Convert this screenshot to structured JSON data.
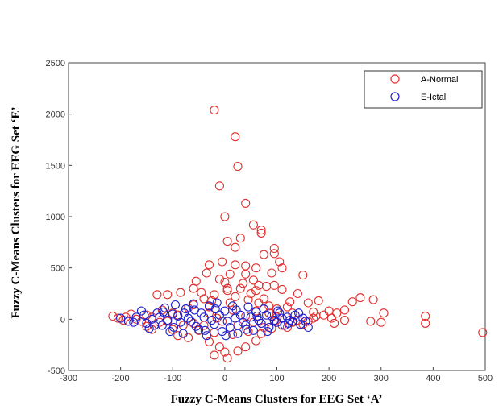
{
  "chart_data": {
    "type": "scatter",
    "xlabel": "Fuzzy C-Means Clusters for EEG Set ‘A’",
    "ylabel": "Fuzzy C-Means Clusters for EEG Set ‘E’",
    "xlim": [
      -300,
      500
    ],
    "ylim": [
      -500,
      2500
    ],
    "xticks": [
      "-300",
      "-200",
      "-100",
      "0",
      "100",
      "200",
      "300",
      "400",
      "500"
    ],
    "yticks": [
      "-500",
      "0",
      "500",
      "1000",
      "1500",
      "2000",
      "2500"
    ],
    "grid": false,
    "legend_position": "top-right",
    "marker": "open-circle",
    "series": [
      {
        "name": "A-Normal",
        "color": "#e03030",
        "points": [
          [
            -20,
            2040
          ],
          [
            20,
            1780
          ],
          [
            25,
            1490
          ],
          [
            -10,
            1300
          ],
          [
            40,
            1130
          ],
          [
            0,
            1000
          ],
          [
            55,
            920
          ],
          [
            70,
            870
          ],
          [
            70,
            840
          ],
          [
            5,
            760
          ],
          [
            30,
            790
          ],
          [
            20,
            700
          ],
          [
            95,
            690
          ],
          [
            95,
            640
          ],
          [
            105,
            560
          ],
          [
            75,
            630
          ],
          [
            -30,
            530
          ],
          [
            -5,
            560
          ],
          [
            20,
            530
          ],
          [
            40,
            520
          ],
          [
            60,
            500
          ],
          [
            40,
            440
          ],
          [
            90,
            450
          ],
          [
            110,
            500
          ],
          [
            150,
            430
          ],
          [
            -35,
            450
          ],
          [
            -10,
            390
          ],
          [
            10,
            440
          ],
          [
            55,
            380
          ],
          [
            80,
            320
          ],
          [
            95,
            330
          ],
          [
            110,
            290
          ],
          [
            60,
            280
          ],
          [
            5,
            300
          ],
          [
            30,
            300
          ],
          [
            -60,
            300
          ],
          [
            -85,
            260
          ],
          [
            -130,
            240
          ],
          [
            -110,
            240
          ],
          [
            140,
            250
          ],
          [
            160,
            160
          ],
          [
            180,
            180
          ],
          [
            200,
            80
          ],
          [
            230,
            90
          ],
          [
            245,
            170
          ],
          [
            260,
            210
          ],
          [
            285,
            190
          ],
          [
            305,
            60
          ],
          [
            280,
            -20
          ],
          [
            300,
            -30
          ],
          [
            385,
            30
          ],
          [
            385,
            -40
          ],
          [
            495,
            -130
          ],
          [
            210,
            -40
          ],
          [
            230,
            -10
          ],
          [
            -215,
            30
          ],
          [
            -205,
            10
          ],
          [
            -190,
            20
          ],
          [
            -180,
            50
          ],
          [
            -160,
            -20
          ],
          [
            -150,
            -70
          ],
          [
            -140,
            -100
          ],
          [
            -90,
            -160
          ],
          [
            -70,
            -180
          ],
          [
            -30,
            -220
          ],
          [
            -10,
            -270
          ],
          [
            0,
            -320
          ],
          [
            5,
            -380
          ],
          [
            -20,
            -350
          ],
          [
            25,
            -310
          ],
          [
            40,
            -270
          ],
          [
            60,
            -210
          ],
          [
            70,
            -140
          ],
          [
            90,
            -90
          ],
          [
            110,
            -60
          ],
          [
            130,
            -30
          ],
          [
            150,
            -50
          ],
          [
            170,
            10
          ],
          [
            190,
            40
          ],
          [
            120,
            120
          ],
          [
            130,
            60
          ],
          [
            -120,
            90
          ],
          [
            -100,
            60
          ],
          [
            -60,
            140
          ],
          [
            -40,
            200
          ],
          [
            -20,
            240
          ],
          [
            20,
            220
          ],
          [
            45,
            190
          ],
          [
            65,
            160
          ],
          [
            85,
            130
          ],
          [
            100,
            100
          ],
          [
            -80,
            -60
          ],
          [
            -50,
            -110
          ],
          [
            -20,
            -130
          ],
          [
            15,
            -150
          ],
          [
            45,
            -120
          ],
          [
            75,
            -80
          ],
          [
            -140,
            20
          ],
          [
            -125,
            -30
          ],
          [
            140,
            -10
          ],
          [
            160,
            -20
          ],
          [
            175,
            30
          ],
          [
            -170,
            0
          ],
          [
            -195,
            -10
          ],
          [
            -45,
            260
          ],
          [
            5,
            280
          ],
          [
            35,
            350
          ],
          [
            50,
            250
          ],
          [
            -25,
            180
          ],
          [
            10,
            160
          ],
          [
            60,
            80
          ],
          [
            -90,
            40
          ],
          [
            100,
            20
          ],
          [
            -110,
            -20
          ],
          [
            120,
            -80
          ],
          [
            -60,
            -40
          ],
          [
            25,
            -60
          ],
          [
            -30,
            60
          ],
          [
            40,
            30
          ],
          [
            -5,
            -20
          ],
          [
            75,
            200
          ],
          [
            -70,
            110
          ],
          [
            85,
            60
          ],
          [
            15,
            90
          ],
          [
            -15,
            10
          ],
          [
            55,
            -30
          ],
          [
            -40,
            -60
          ],
          [
            95,
            -20
          ],
          [
            -100,
            -100
          ],
          [
            -150,
            40
          ],
          [
            205,
            10
          ],
          [
            215,
            60
          ],
          [
            170,
            70
          ],
          [
            125,
            170
          ],
          [
            65,
            330
          ],
          [
            0,
            360
          ],
          [
            -55,
            370
          ],
          [
            -30,
            120
          ]
        ]
      },
      {
        "name": "E-Ictal",
        "color": "#2020cc",
        "points": [
          [
            -200,
            10
          ],
          [
            -185,
            -20
          ],
          [
            -170,
            20
          ],
          [
            -160,
            80
          ],
          [
            -150,
            -40
          ],
          [
            -145,
            -90
          ],
          [
            -130,
            60
          ],
          [
            -120,
            -60
          ],
          [
            -115,
            110
          ],
          [
            -105,
            -120
          ],
          [
            -95,
            140
          ],
          [
            -90,
            30
          ],
          [
            -80,
            -140
          ],
          [
            -75,
            100
          ],
          [
            -65,
            -20
          ],
          [
            -60,
            150
          ],
          [
            -50,
            -100
          ],
          [
            -45,
            60
          ],
          [
            -35,
            -160
          ],
          [
            -30,
            130
          ],
          [
            -20,
            -50
          ],
          [
            -15,
            160
          ],
          [
            -5,
            -120
          ],
          [
            0,
            80
          ],
          [
            10,
            -80
          ],
          [
            15,
            130
          ],
          [
            25,
            -140
          ],
          [
            30,
            40
          ],
          [
            40,
            -60
          ],
          [
            45,
            120
          ],
          [
            55,
            -110
          ],
          [
            60,
            70
          ],
          [
            70,
            -40
          ],
          [
            75,
            100
          ],
          [
            85,
            -80
          ],
          [
            90,
            30
          ],
          [
            100,
            -30
          ],
          [
            105,
            60
          ],
          [
            115,
            -60
          ],
          [
            120,
            20
          ],
          [
            130,
            -20
          ],
          [
            135,
            40
          ],
          [
            145,
            -50
          ],
          [
            150,
            10
          ],
          [
            160,
            -80
          ],
          [
            -140,
            0
          ],
          [
            -125,
            20
          ],
          [
            -110,
            -10
          ],
          [
            -100,
            50
          ],
          [
            -85,
            -30
          ],
          [
            -70,
            10
          ],
          [
            -55,
            -70
          ],
          [
            -40,
            20
          ],
          [
            -25,
            -10
          ],
          [
            -10,
            40
          ],
          [
            5,
            -20
          ],
          [
            20,
            10
          ],
          [
            35,
            -30
          ],
          [
            50,
            20
          ],
          [
            65,
            -10
          ],
          [
            80,
            40
          ],
          [
            95,
            -10
          ],
          [
            110,
            10
          ],
          [
            125,
            -10
          ],
          [
            -175,
            -30
          ],
          [
            -155,
            40
          ],
          [
            -135,
            -60
          ],
          [
            -118,
            70
          ],
          [
            -98,
            -80
          ],
          [
            -78,
            60
          ],
          [
            -58,
            90
          ],
          [
            -38,
            -110
          ],
          [
            -18,
            100
          ],
          [
            2,
            -160
          ],
          [
            22,
            90
          ],
          [
            42,
            -100
          ],
          [
            62,
            30
          ],
          [
            82,
            -120
          ],
          [
            102,
            80
          ],
          [
            122,
            -40
          ],
          [
            142,
            60
          ],
          [
            155,
            -20
          ]
        ]
      }
    ]
  }
}
